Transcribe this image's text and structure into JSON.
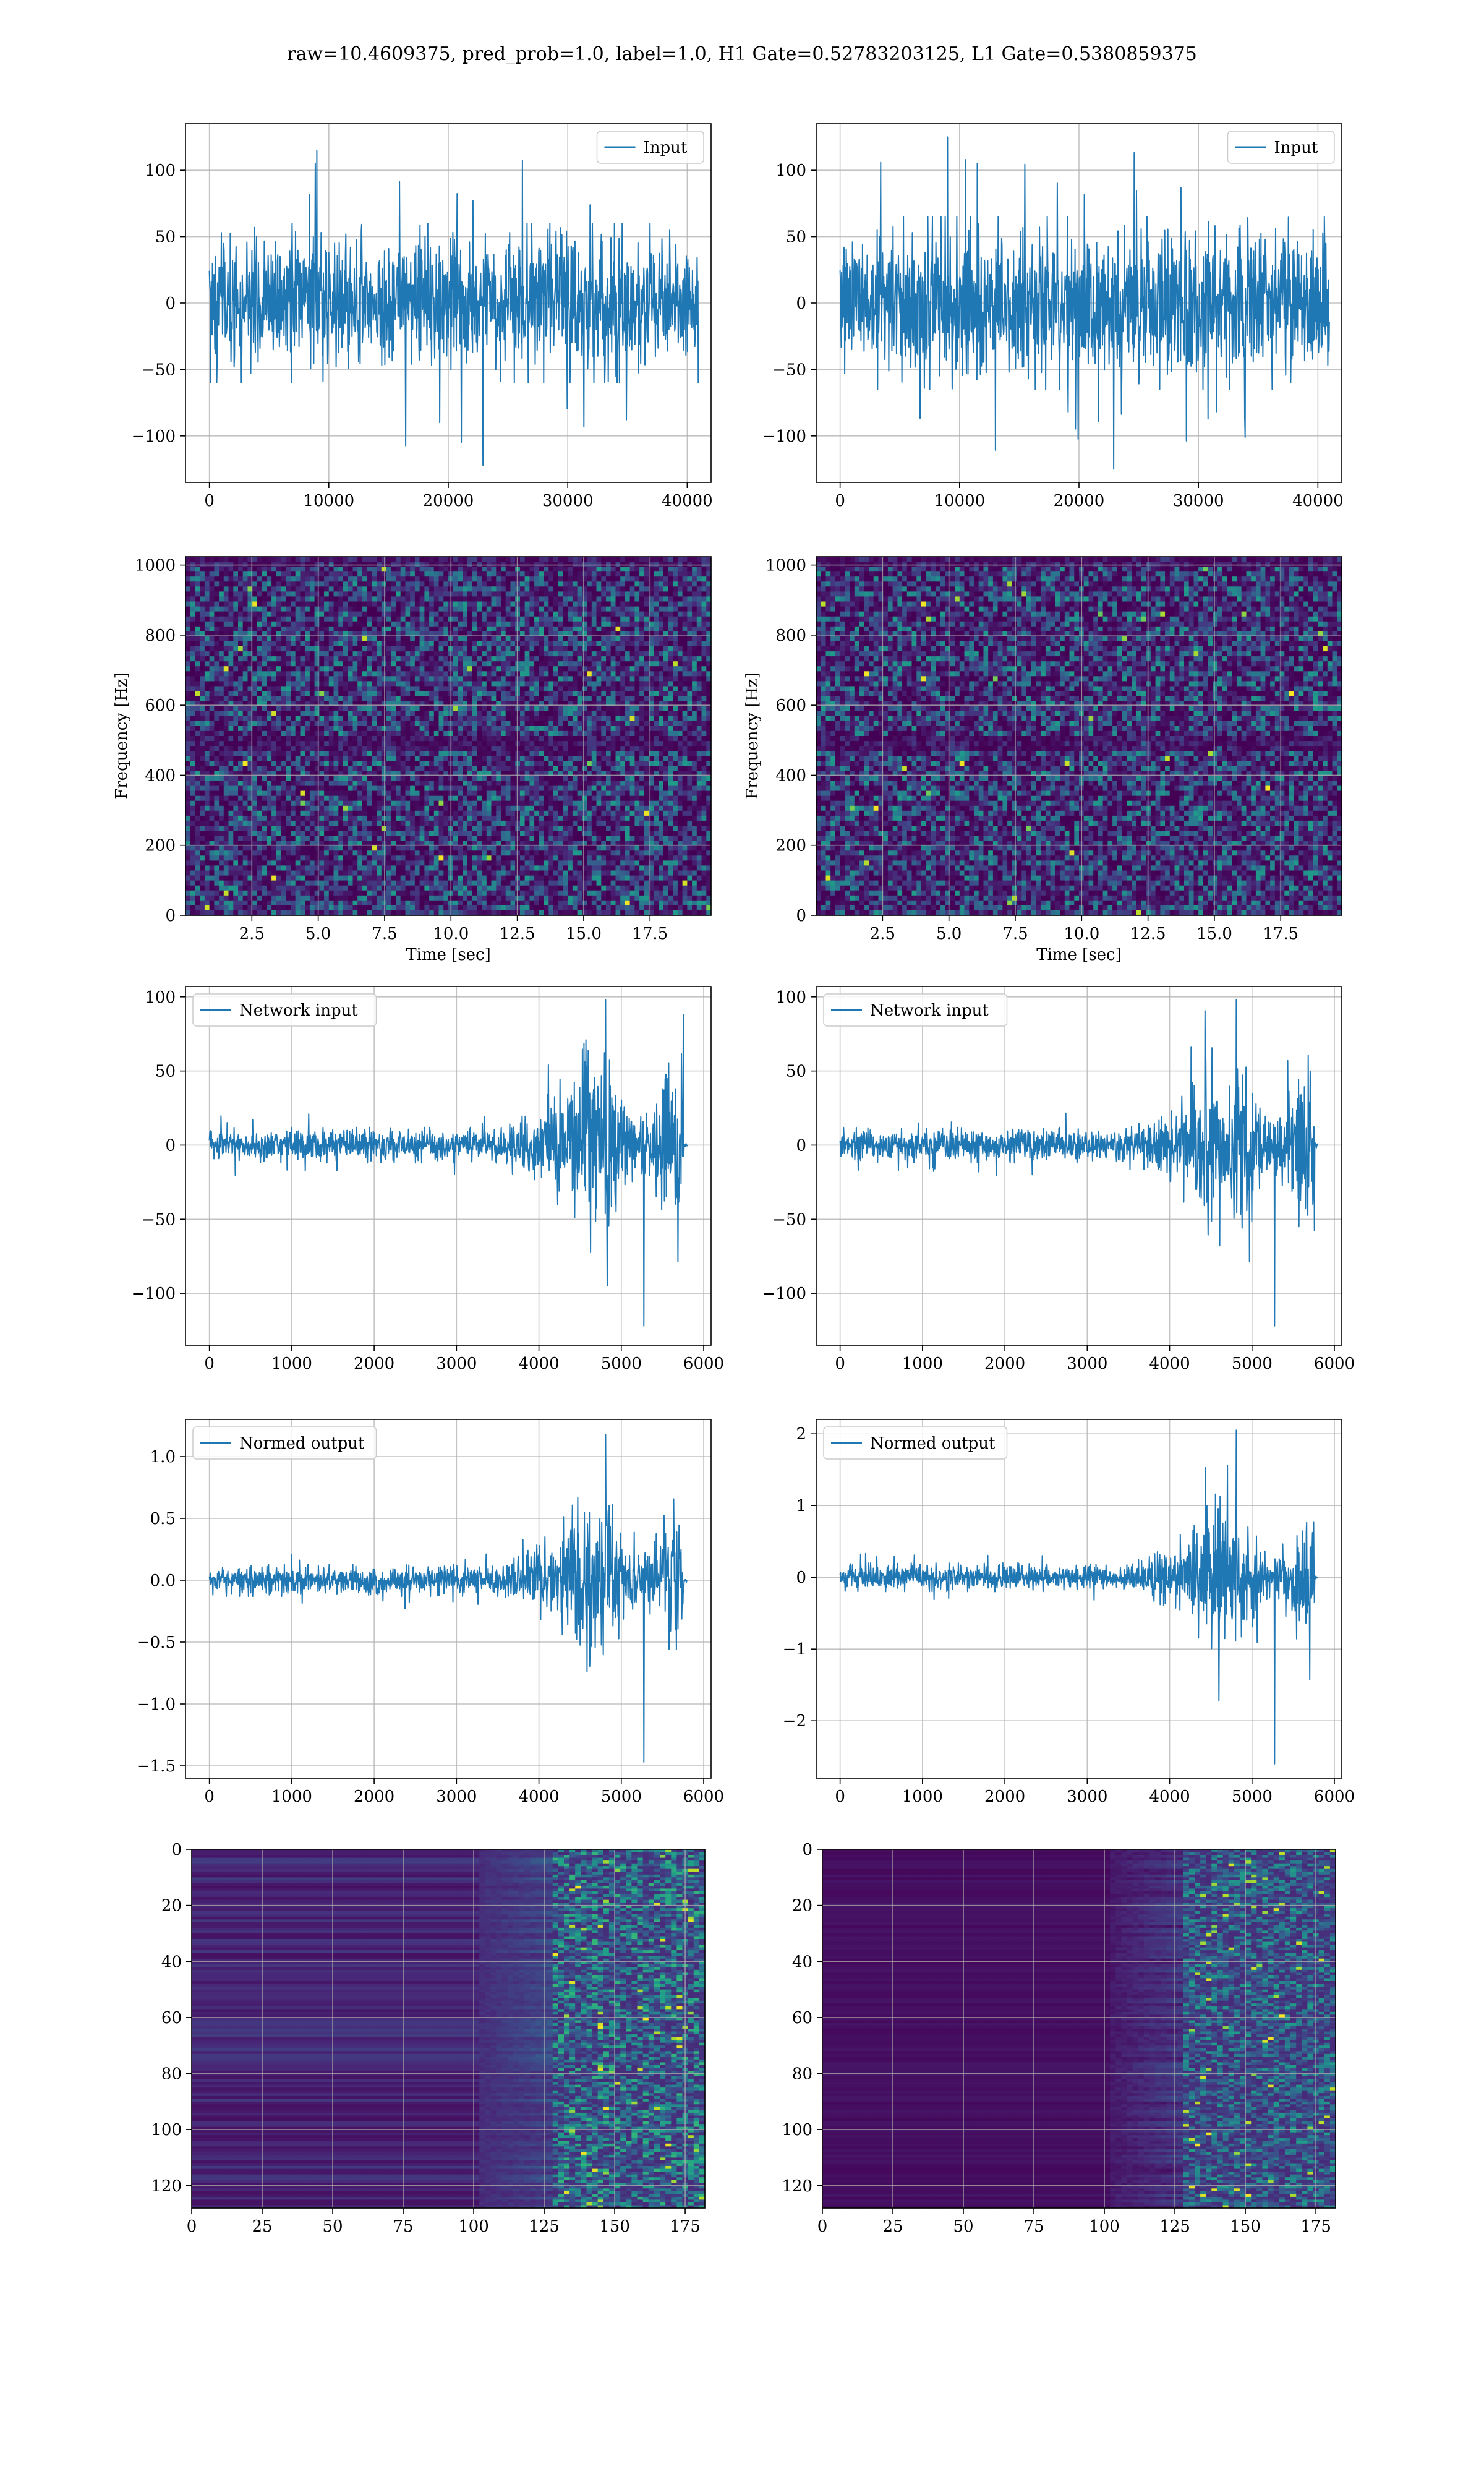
{
  "figure": {
    "title": "raw=10.4609375, pred_prob=1.0, label=1.0, H1 Gate=0.52783203125, L1 Gate=0.5380859375",
    "colors": {
      "line": "#1f77b4",
      "grid": "#b0b0b0",
      "axes": "#000000",
      "viridis": [
        "#440154",
        "#482878",
        "#3e4989",
        "#31688e",
        "#26828e",
        "#1f9e89",
        "#35b779",
        "#6ece58",
        "#b5de2b",
        "#fde725"
      ]
    }
  },
  "chart_data": [
    {
      "type": "line",
      "name": "row1-left",
      "legend": "Input",
      "legend_loc": "upper right",
      "xlim": [
        -2000,
        42000
      ],
      "ylim": [
        -135,
        135
      ],
      "xticks": [
        0,
        10000,
        20000,
        30000,
        40000
      ],
      "xticklabels": [
        "0",
        "10000",
        "20000",
        "30000",
        "40000"
      ],
      "yticks": [
        -100,
        -50,
        0,
        50,
        100
      ],
      "yticklabels": [
        "−100",
        "−50",
        "0",
        "50",
        "100"
      ],
      "series": [
        {
          "x_start": 0,
          "x_end": 40960,
          "amplitude_core": 60,
          "peak_max": 115,
          "peak_min": -122,
          "shape": "stationary-noise"
        }
      ],
      "xlabel": "",
      "ylabel": "",
      "grid": true
    },
    {
      "type": "line",
      "name": "row1-right",
      "legend": "Input",
      "legend_loc": "upper right",
      "xlim": [
        -2000,
        42000
      ],
      "ylim": [
        -135,
        135
      ],
      "xticks": [
        0,
        10000,
        20000,
        30000,
        40000
      ],
      "xticklabels": [
        "0",
        "10000",
        "20000",
        "30000",
        "40000"
      ],
      "yticks": [
        -100,
        -50,
        0,
        50,
        100
      ],
      "yticklabels": [
        "−100",
        "−50",
        "0",
        "50",
        "100"
      ],
      "series": [
        {
          "x_start": 0,
          "x_end": 40960,
          "amplitude_core": 65,
          "peak_max": 125,
          "peak_min": -125,
          "shape": "stationary-noise"
        }
      ],
      "xlabel": "",
      "ylabel": "",
      "grid": true
    },
    {
      "type": "heatmap",
      "name": "row2-left",
      "colormap": "viridis",
      "xlim": [
        0,
        19.8
      ],
      "ylim": [
        0,
        1024
      ],
      "xticks": [
        2.5,
        5.0,
        7.5,
        10.0,
        12.5,
        15.0,
        17.5
      ],
      "xticklabels": [
        "2.5",
        "5.0",
        "7.5",
        "10.0",
        "12.5",
        "15.0",
        "17.5"
      ],
      "yticks": [
        0,
        200,
        400,
        600,
        800,
        1000
      ],
      "yticklabels": [
        "0",
        "200",
        "400",
        "600",
        "800",
        "1000"
      ],
      "xlabel": "Time [sec]",
      "ylabel": "Frequency [Hz]",
      "grid": true
    },
    {
      "type": "heatmap",
      "name": "row2-right",
      "colormap": "viridis",
      "xlim": [
        0,
        19.8
      ],
      "ylim": [
        0,
        1024
      ],
      "xticks": [
        2.5,
        5.0,
        7.5,
        10.0,
        12.5,
        15.0,
        17.5
      ],
      "xticklabels": [
        "2.5",
        "5.0",
        "7.5",
        "10.0",
        "12.5",
        "15.0",
        "17.5"
      ],
      "yticks": [
        0,
        200,
        400,
        600,
        800,
        1000
      ],
      "yticklabels": [
        "0",
        "200",
        "400",
        "600",
        "800",
        "1000"
      ],
      "xlabel": "Time [sec]",
      "ylabel": "Frequency [Hz]",
      "grid": true
    },
    {
      "type": "line",
      "name": "row3-left",
      "legend": "Network input",
      "legend_loc": "upper left",
      "xlim": [
        -290,
        6090
      ],
      "ylim": [
        -135,
        107
      ],
      "xticks": [
        0,
        1000,
        2000,
        3000,
        4000,
        5000,
        6000
      ],
      "xticklabels": [
        "0",
        "1000",
        "2000",
        "3000",
        "4000",
        "5000",
        "6000"
      ],
      "yticks": [
        -100,
        -50,
        0,
        50,
        100
      ],
      "yticklabels": [
        "−100",
        "−50",
        "0",
        "50",
        "100"
      ],
      "series": [
        {
          "x_start": 0,
          "x_end": 5800,
          "amplitude_core": 12,
          "peak_max": 98,
          "peak_min": -122,
          "shape": "chirp-burst"
        }
      ],
      "xlabel": "",
      "ylabel": "",
      "grid": true
    },
    {
      "type": "line",
      "name": "row3-right",
      "legend": "Network input",
      "legend_loc": "upper left",
      "xlim": [
        -290,
        6090
      ],
      "ylim": [
        -135,
        107
      ],
      "xticks": [
        0,
        1000,
        2000,
        3000,
        4000,
        5000,
        6000
      ],
      "xticklabels": [
        "0",
        "1000",
        "2000",
        "3000",
        "4000",
        "5000",
        "6000"
      ],
      "yticks": [
        -100,
        -50,
        0,
        50,
        100
      ],
      "yticklabels": [
        "−100",
        "−50",
        "0",
        "50",
        "100"
      ],
      "series": [
        {
          "x_start": 0,
          "x_end": 5800,
          "amplitude_core": 12,
          "peak_max": 98,
          "peak_min": -122,
          "shape": "chirp-burst"
        }
      ],
      "xlabel": "",
      "ylabel": "",
      "grid": true
    },
    {
      "type": "line",
      "name": "row4-left",
      "legend": "Normed output",
      "legend_loc": "upper left",
      "xlim": [
        -290,
        6090
      ],
      "ylim": [
        -1.6,
        1.3
      ],
      "xticks": [
        0,
        1000,
        2000,
        3000,
        4000,
        5000,
        6000
      ],
      "xticklabels": [
        "0",
        "1000",
        "2000",
        "3000",
        "4000",
        "5000",
        "6000"
      ],
      "yticks": [
        -1.5,
        -1.0,
        -0.5,
        0.0,
        0.5,
        1.0
      ],
      "yticklabels": [
        "−1.5",
        "−1.0",
        "−0.5",
        "0.0",
        "0.5",
        "1.0"
      ],
      "series": [
        {
          "x_start": 0,
          "x_end": 5800,
          "amplitude_core": 0.13,
          "peak_max": 1.18,
          "peak_min": -1.47,
          "shape": "chirp-burst"
        }
      ],
      "xlabel": "",
      "ylabel": "",
      "grid": true
    },
    {
      "type": "line",
      "name": "row4-right",
      "legend": "Normed output",
      "legend_loc": "upper left",
      "xlim": [
        -290,
        6090
      ],
      "ylim": [
        -2.8,
        2.2
      ],
      "xticks": [
        0,
        1000,
        2000,
        3000,
        4000,
        5000,
        6000
      ],
      "xticklabels": [
        "0",
        "1000",
        "2000",
        "3000",
        "4000",
        "5000",
        "6000"
      ],
      "yticks": [
        -2,
        -1,
        0,
        1,
        2
      ],
      "yticklabels": [
        "−2",
        "−1",
        "0",
        "1",
        "2"
      ],
      "series": [
        {
          "x_start": 0,
          "x_end": 5800,
          "amplitude_core": 0.2,
          "peak_max": 2.05,
          "peak_min": -2.6,
          "shape": "chirp-burst"
        }
      ],
      "xlabel": "",
      "ylabel": "",
      "grid": true
    },
    {
      "type": "heatmap",
      "name": "row5-left",
      "colormap": "viridis",
      "orientation": "image",
      "xlim": [
        0,
        182
      ],
      "ylim": [
        128,
        0
      ],
      "xticks": [
        0,
        25,
        50,
        75,
        100,
        125,
        150,
        175
      ],
      "xticklabels": [
        "0",
        "25",
        "50",
        "75",
        "100",
        "125",
        "150",
        "175"
      ],
      "yticks": [
        0,
        20,
        40,
        60,
        80,
        100,
        120
      ],
      "yticklabels": [
        "0",
        "20",
        "40",
        "60",
        "80",
        "100",
        "120"
      ],
      "xlabel": "",
      "ylabel": "",
      "grid": true
    },
    {
      "type": "heatmap",
      "name": "row5-right",
      "colormap": "viridis",
      "orientation": "image",
      "xlim": [
        0,
        182
      ],
      "ylim": [
        128,
        0
      ],
      "xticks": [
        0,
        25,
        50,
        75,
        100,
        125,
        150,
        175
      ],
      "xticklabels": [
        "0",
        "25",
        "50",
        "75",
        "100",
        "125",
        "150",
        "175"
      ],
      "yticks": [
        0,
        20,
        40,
        60,
        80,
        100,
        120
      ],
      "yticklabels": [
        "0",
        "20",
        "40",
        "60",
        "80",
        "100",
        "120"
      ],
      "xlabel": "",
      "ylabel": "",
      "grid": true
    }
  ]
}
